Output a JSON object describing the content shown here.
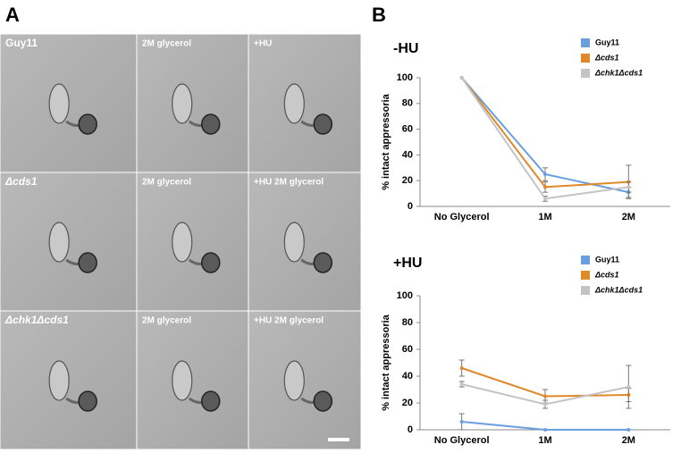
{
  "panel_labels": [
    "A",
    "B"
  ],
  "micrographs": {
    "rows": [
      [
        "Guy11",
        "2M glycerol",
        "+HU"
      ],
      [
        "Δcds1",
        "2M glycerol",
        "+HU 2M glycerol"
      ],
      [
        "Δchk1Δcds1",
        "2M glycerol",
        "+HU 2M glycerol"
      ]
    ]
  },
  "chart_data": [
    {
      "type": "line",
      "title": "-HU",
      "y_label": "% intact appressoria",
      "categories": [
        "No Glycerol",
        "1M",
        "2M"
      ],
      "series": [
        {
          "name": "Guy11",
          "color": "#6a9edf",
          "values": [
            100,
            25,
            11
          ],
          "errors": [
            0,
            5,
            4
          ]
        },
        {
          "name": "Δcds1",
          "color": "#e0892b",
          "values": [
            100,
            15,
            19
          ],
          "errors": [
            0,
            4,
            13
          ]
        },
        {
          "name": "Δchk1Δcds1",
          "color": "#c4c4c4",
          "values": [
            100,
            6,
            15
          ],
          "errors": [
            0,
            2,
            4
          ]
        }
      ],
      "ylim": [
        0,
        100
      ],
      "yticks": [
        0,
        20,
        40,
        60,
        80,
        100
      ],
      "legend": "top-right"
    },
    {
      "type": "line",
      "title": "+HU",
      "y_label": "% intact appressoria",
      "categories": [
        "No Glycerol",
        "1M",
        "2M"
      ],
      "series": [
        {
          "name": "Guy11",
          "color": "#6a9edf",
          "values": [
            6,
            0,
            0
          ],
          "errors": [
            6,
            0,
            0
          ]
        },
        {
          "name": "Δcds1",
          "color": "#e0892b",
          "values": [
            46,
            25,
            26
          ],
          "errors": [
            6,
            5,
            5
          ]
        },
        {
          "name": "Δchk1Δcds1",
          "color": "#c4c4c4",
          "values": [
            34,
            19,
            32
          ],
          "errors": [
            2,
            3,
            16
          ]
        }
      ],
      "ylim": [
        0,
        100
      ],
      "yticks": [
        0,
        20,
        40,
        60,
        80,
        100
      ],
      "legend": "top-right"
    }
  ]
}
